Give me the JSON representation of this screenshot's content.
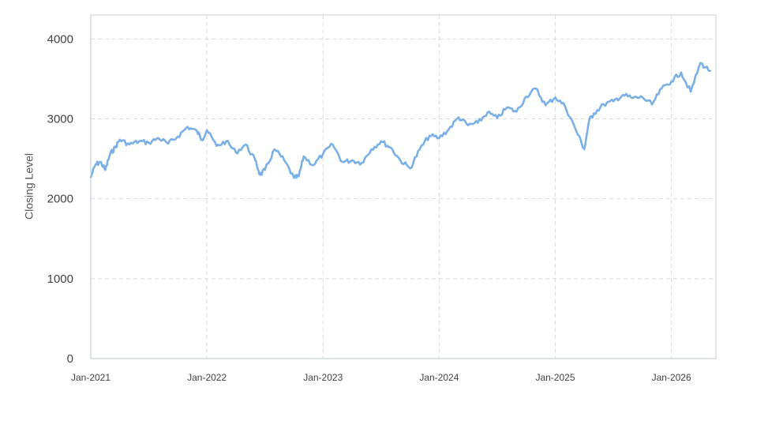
{
  "chart_data": {
    "type": "line",
    "ylabel": "Closing Level",
    "ylim": [
      0,
      4300
    ],
    "y_ticks": [
      0,
      1000,
      2000,
      3000,
      4000
    ],
    "x_ticks": [
      "Jan-2021",
      "Jan-2022",
      "Jan-2023",
      "Jan-2024",
      "Jan-2025",
      "Jan-2026"
    ],
    "x_range": [
      "2021-01",
      "2026-05"
    ],
    "grid": true,
    "line_color": "#7ab0e6",
    "series": [
      {
        "x": [
          "2021-01",
          "2021-01",
          "2021-02",
          "2021-02",
          "2021-03",
          "2021-03",
          "2021-04",
          "2021-05",
          "2021-06",
          "2021-07",
          "2021-08",
          "2021-09",
          "2021-10",
          "2021-11",
          "2021-12",
          "2021-12",
          "2022-01",
          "2022-02",
          "2022-03",
          "2022-04",
          "2022-05",
          "2022-06",
          "2022-06",
          "2022-07",
          "2022-08",
          "2022-09",
          "2022-10",
          "2022-10",
          "2022-11",
          "2022-12",
          "2023-01",
          "2023-02",
          "2023-03",
          "2023-04",
          "2023-05",
          "2023-06",
          "2023-07",
          "2023-08",
          "2023-09",
          "2023-10",
          "2023-11",
          "2023-12",
          "2024-01",
          "2024-02",
          "2024-03",
          "2024-04",
          "2024-05",
          "2024-06",
          "2024-07",
          "2024-08",
          "2024-09",
          "2024-10",
          "2024-11",
          "2024-12",
          "2025-01",
          "2025-02",
          "2025-03",
          "2025-04",
          "2025-04",
          "2025-05",
          "2025-06",
          "2025-07",
          "2025-08",
          "2025-09",
          "2025-10",
          "2025-11",
          "2025-12",
          "2026-01",
          "2026-02",
          "2026-03",
          "2026-04",
          "2026-05"
        ],
        "y": [
          2270,
          2430,
          2460,
          2360,
          2560,
          2640,
          2740,
          2680,
          2720,
          2700,
          2760,
          2690,
          2780,
          2900,
          2840,
          2740,
          2860,
          2660,
          2720,
          2580,
          2680,
          2480,
          2300,
          2360,
          2620,
          2480,
          2260,
          2280,
          2530,
          2420,
          2560,
          2680,
          2460,
          2480,
          2450,
          2620,
          2720,
          2640,
          2480,
          2380,
          2620,
          2790,
          2760,
          2870,
          3020,
          2920,
          2950,
          3080,
          3010,
          3140,
          3090,
          3280,
          3380,
          3170,
          3270,
          3160,
          2900,
          2620,
          2980,
          3070,
          3180,
          3220,
          3300,
          3260,
          3270,
          3180,
          3380,
          3470,
          3580,
          3340,
          3700,
          3600
        ]
      }
    ]
  }
}
